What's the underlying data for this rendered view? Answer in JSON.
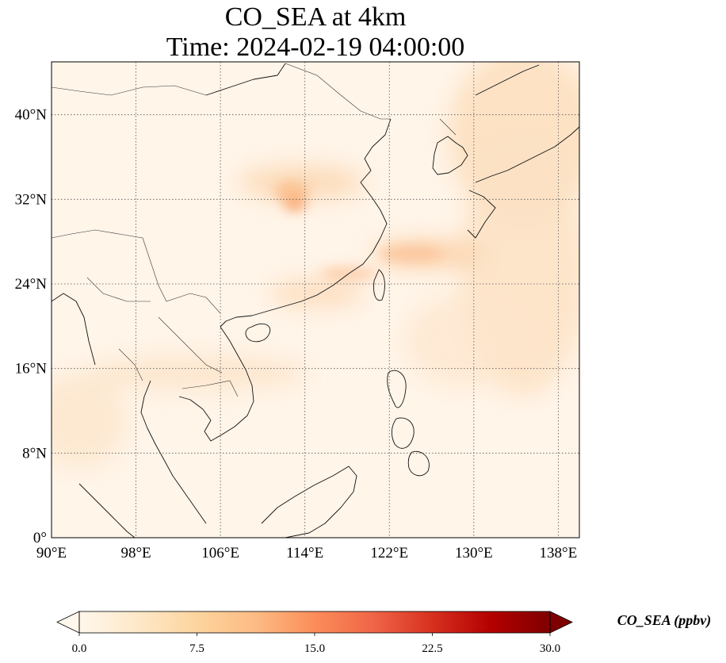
{
  "title": {
    "line1": "CO_SEA at 4km",
    "line2": "Time: 2024-02-19 04:00:00"
  },
  "map": {
    "lon_range": [
      90,
      140
    ],
    "lat_range": [
      0,
      45
    ],
    "lon_ticks": [
      {
        "value": 90,
        "label": "90°E"
      },
      {
        "value": 98,
        "label": "98°E"
      },
      {
        "value": 106,
        "label": "106°E"
      },
      {
        "value": 114,
        "label": "114°E"
      },
      {
        "value": 122,
        "label": "122°E"
      },
      {
        "value": 130,
        "label": "130°E"
      },
      {
        "value": 138,
        "label": "138°E"
      }
    ],
    "lat_ticks": [
      {
        "value": 0,
        "label": "0°"
      },
      {
        "value": 8,
        "label": "8°N"
      },
      {
        "value": 16,
        "label": "16°N"
      },
      {
        "value": 24,
        "label": "24°N"
      },
      {
        "value": 32,
        "label": "32°N"
      },
      {
        "value": 40,
        "label": "40°N"
      }
    ],
    "gridlines": true
  },
  "colorbar": {
    "label": "CO_SEA (ppbv)",
    "min": 0,
    "max": 30,
    "ticks": [
      "0.0",
      "7.5",
      "15.0",
      "22.5",
      "30.0"
    ],
    "extend": "both",
    "colormap": [
      "#fff7ec",
      "#fee8c8",
      "#fdd49e",
      "#fdbb84",
      "#fc8d59",
      "#ef6548",
      "#d7301f",
      "#b30000",
      "#7f0000"
    ]
  }
}
